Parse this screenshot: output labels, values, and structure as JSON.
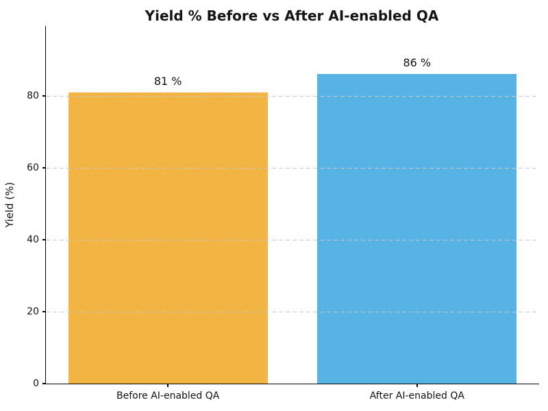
{
  "chart_data": {
    "type": "bar",
    "title": "Yield % Before vs After AI-enabled QA",
    "categories": [
      "Before AI-enabled QA",
      "After AI-enabled QA"
    ],
    "values": [
      81,
      86
    ],
    "bar_value_labels": [
      "81 %",
      "86 %"
    ],
    "bar_colors": [
      "#F2B544",
      "#57B3E4"
    ],
    "xlabel": "",
    "ylabel": "Yield (%)",
    "ylim": [
      0,
      99.4
    ],
    "yticks": [
      0,
      20,
      40,
      60,
      80
    ],
    "ytick_labels": [
      "0",
      "20",
      "40",
      "60",
      "80"
    ],
    "grid": "horizontal-dashed-over-bars",
    "legend": "none"
  },
  "colors": {
    "grid": "#c8c8c8",
    "axis": "#000000",
    "text": "#111111",
    "title": "#151515",
    "background": "#ffffff"
  }
}
